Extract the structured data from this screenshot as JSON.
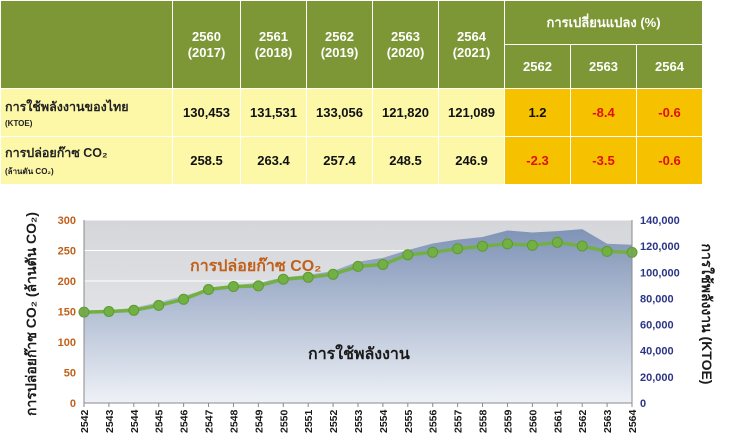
{
  "table": {
    "years": [
      {
        "be": "2560",
        "ce": "(2017)"
      },
      {
        "be": "2561",
        "ce": "(2018)"
      },
      {
        "be": "2562",
        "ce": "(2019)"
      },
      {
        "be": "2563",
        "ce": "(2020)"
      },
      {
        "be": "2564",
        "ce": "(2021)"
      }
    ],
    "change_header": "การเปลี่ยนแปลง (%)",
    "change_years": [
      "2562",
      "2563",
      "2564"
    ],
    "rows": [
      {
        "label": "การใช้พลังงานของไทย",
        "unit": "(KTOE)",
        "values": [
          "130,453",
          "131,531",
          "133,056",
          "121,820",
          "121,089"
        ],
        "changes": [
          "1.2",
          "-8.4",
          "-0.6"
        ]
      },
      {
        "label": "การปล่อยก๊าซ CO₂",
        "unit": "(ล้านตัน CO₂)",
        "values": [
          "258.5",
          "263.4",
          "257.4",
          "248.5",
          "246.9"
        ],
        "changes": [
          "-2.3",
          "-3.5",
          "-0.6"
        ]
      }
    ],
    "colors": {
      "header": "#7d9736",
      "cell": "#fdf8a8",
      "change_cell": "#f6c200",
      "negative": "#e01010"
    }
  },
  "chart_data": {
    "type": "area",
    "x": [
      "2542",
      "2543",
      "2544",
      "2545",
      "2546",
      "2547",
      "2548",
      "2549",
      "2550",
      "2551",
      "2552",
      "2553",
      "2554",
      "2555",
      "2556",
      "2557",
      "2558",
      "2559",
      "2560",
      "2561",
      "2562",
      "2563",
      "2564"
    ],
    "series": [
      {
        "name": "การใช้พลังงาน",
        "type": "area",
        "axis": "right",
        "color": "#8a9cbf",
        "values": [
          70000,
          71000,
          73000,
          77000,
          82000,
          87000,
          90000,
          92000,
          96000,
          98000,
          101000,
          108000,
          111000,
          117000,
          122000,
          125000,
          127000,
          132000,
          130453,
          131531,
          133056,
          121820,
          121089
        ]
      },
      {
        "name": "การปล่อยก๊าซ CO₂",
        "type": "line",
        "axis": "left",
        "color": "#72b043",
        "values": [
          149,
          150,
          152,
          160,
          170,
          186,
          191,
          192,
          203,
          206,
          211,
          224,
          227,
          243,
          247,
          253,
          257,
          261,
          258.5,
          263.4,
          257.4,
          248.5,
          246.9
        ]
      }
    ],
    "ylabel": "การปล่อยก๊าซ CO₂ (ล้านตัน CO₂)",
    "y2label": "การใช้พลังงาน (KTOE)",
    "ylim": [
      0,
      300
    ],
    "y2lim": [
      0,
      140000
    ],
    "yticks": [
      "0",
      "50",
      "100",
      "150",
      "200",
      "250",
      "300"
    ],
    "y2ticks": [
      "0",
      "20,000",
      "40,000",
      "60,000",
      "80,000",
      "100,000",
      "120,000",
      "140,000"
    ],
    "annotations": {
      "line": "การปล่อยก๊าซ CO₂",
      "area": "การใช้พลังงาน"
    },
    "colors": {
      "left_axis_text": "#c0601a",
      "right_axis_text": "#2c3586",
      "line_label": "#c0601a"
    },
    "grid": true
  }
}
